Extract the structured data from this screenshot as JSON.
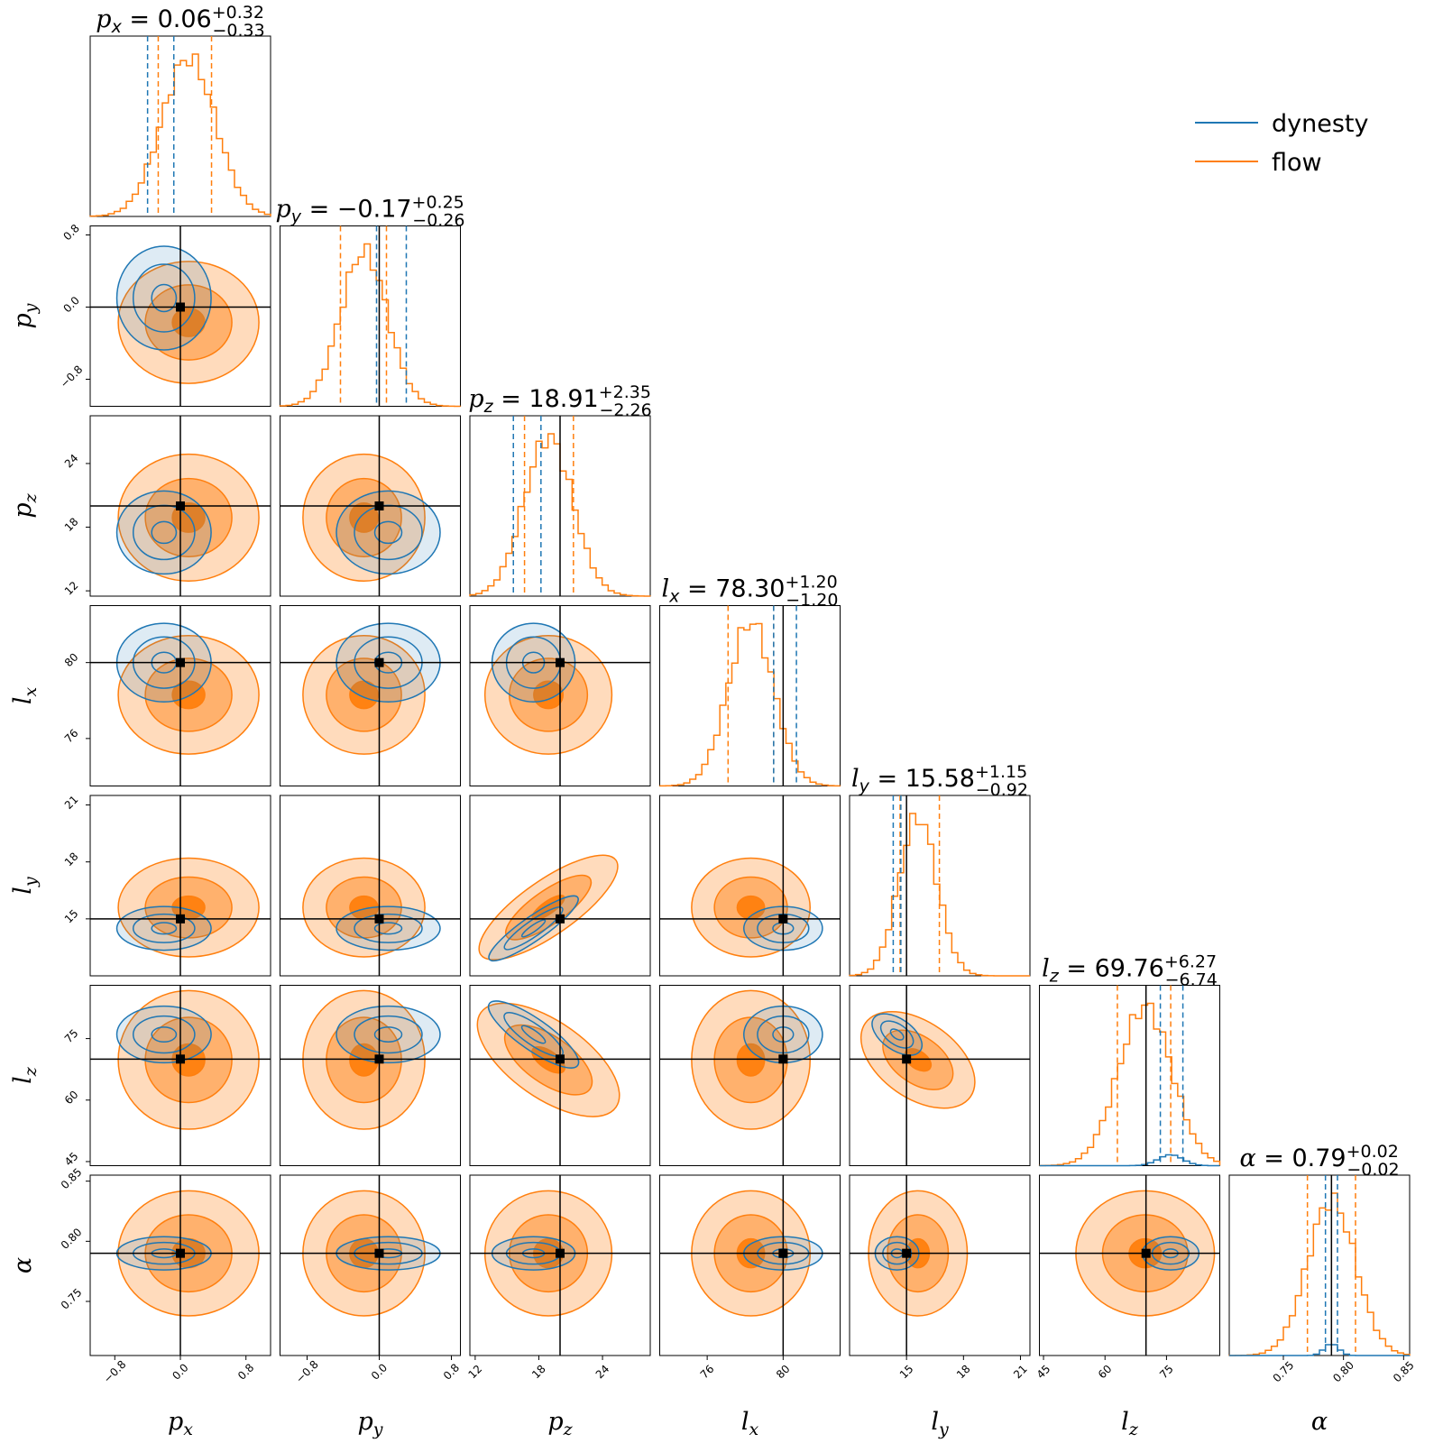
{
  "chart_data": {
    "type": "corner",
    "parameters": [
      {
        "symbol": "p",
        "sub": "x",
        "title_value": "0.06",
        "plus": "+0.32",
        "minus": "−0.33",
        "range": [
          -1.1,
          1.1
        ],
        "ticks": [
          -0.8,
          0.0,
          0.8
        ],
        "tick_labels": [
          "−0.8",
          "0.0",
          "0.8"
        ],
        "truth": 0.0,
        "flow_quantiles": [
          -0.27,
          0.06,
          0.38
        ],
        "dynesty_quantiles": [
          -0.4,
          -0.08
        ],
        "flow_mean": 0.1,
        "flow_sd": 0.33,
        "dynesty_mean": -0.2,
        "dynesty_sd": 0.25
      },
      {
        "symbol": "p",
        "sub": "y",
        "title_value": "−0.17",
        "plus": "+0.25",
        "minus": "−0.26",
        "range": [
          -1.1,
          0.9
        ],
        "ticks": [
          -0.8,
          0.0,
          0.8
        ],
        "tick_labels": [
          "−0.8",
          "0.0",
          "0.8"
        ],
        "truth": 0.0,
        "flow_quantiles": [
          -0.43,
          -0.17,
          0.08
        ],
        "dynesty_quantiles": [
          -0.03,
          0.3
        ],
        "flow_mean": -0.17,
        "flow_sd": 0.26,
        "dynesty_mean": 0.1,
        "dynesty_sd": 0.25
      },
      {
        "symbol": "p",
        "sub": "z",
        "title_value": "18.91",
        "plus": "+2.35",
        "minus": "−2.26",
        "range": [
          11.5,
          28.5
        ],
        "ticks": [
          12,
          18,
          24
        ],
        "tick_labels": [
          "12",
          "18",
          "24"
        ],
        "truth": 20.0,
        "flow_quantiles": [
          16.65,
          18.91,
          21.26
        ],
        "dynesty_quantiles": [
          15.6,
          18.2
        ],
        "flow_mean": 18.9,
        "flow_sd": 2.3,
        "dynesty_mean": 17.5,
        "dynesty_sd": 1.7
      },
      {
        "symbol": "l",
        "sub": "x",
        "title_value": "78.30",
        "plus": "+1.20",
        "minus": "−1.20",
        "range": [
          73.5,
          83.0
        ],
        "ticks": [
          76,
          80
        ],
        "tick_labels": [
          "76",
          "80"
        ],
        "truth": 80.0,
        "flow_quantiles": [
          77.1,
          78.3,
          79.5
        ],
        "dynesty_quantiles": [
          79.5,
          80.7
        ],
        "flow_mean": 78.3,
        "flow_sd": 1.2,
        "dynesty_mean": 80.0,
        "dynesty_sd": 0.9
      },
      {
        "symbol": "l",
        "sub": "y",
        "title_value": "15.58",
        "plus": "+1.15",
        "minus": "−0.92",
        "range": [
          12.0,
          21.5
        ],
        "ticks": [
          15,
          18,
          21
        ],
        "tick_labels": [
          "15",
          "18",
          "21"
        ],
        "truth": 15.0,
        "flow_quantiles": [
          14.66,
          15.58,
          16.73
        ],
        "dynesty_quantiles": [
          14.3,
          14.7
        ],
        "flow_mean": 15.6,
        "flow_sd": 1.0,
        "dynesty_mean": 14.5,
        "dynesty_sd": 0.5
      },
      {
        "symbol": "l",
        "sub": "z",
        "title_value": "69.76",
        "plus": "+6.27",
        "minus": "−6.74",
        "range": [
          44,
          88
        ],
        "ticks": [
          45,
          60,
          75
        ],
        "tick_labels": [
          "45",
          "60",
          "75"
        ],
        "truth": 70.0,
        "flow_quantiles": [
          63.02,
          69.76,
          76.03
        ],
        "dynesty_quantiles": [
          73.5,
          79.0
        ],
        "flow_mean": 69.8,
        "flow_sd": 6.5,
        "dynesty_mean": 76.0,
        "dynesty_sd": 3.0
      },
      {
        "symbol": "α",
        "sub": "",
        "title_value": "0.79",
        "plus": "+0.02",
        "minus": "−0.02",
        "range": [
          0.705,
          0.855
        ],
        "ticks": [
          0.75,
          0.8,
          0.85
        ],
        "tick_labels": [
          "0.75",
          "0.80",
          "0.85"
        ],
        "truth": 0.79,
        "flow_quantiles": [
          0.77,
          0.79,
          0.81
        ],
        "dynesty_quantiles": [
          0.785,
          0.795
        ],
        "flow_mean": 0.79,
        "flow_sd": 0.02,
        "dynesty_mean": 0.79,
        "dynesty_sd": 0.006
      }
    ],
    "legend": [
      {
        "label": "dynesty",
        "color": "#1f77b4"
      },
      {
        "label": "flow",
        "color": "#ff7f0e"
      }
    ],
    "legend_position": "top-right",
    "colors": {
      "flow": "#ff7f0e",
      "dynesty": "#1f77b4",
      "truth": "#000000"
    }
  }
}
